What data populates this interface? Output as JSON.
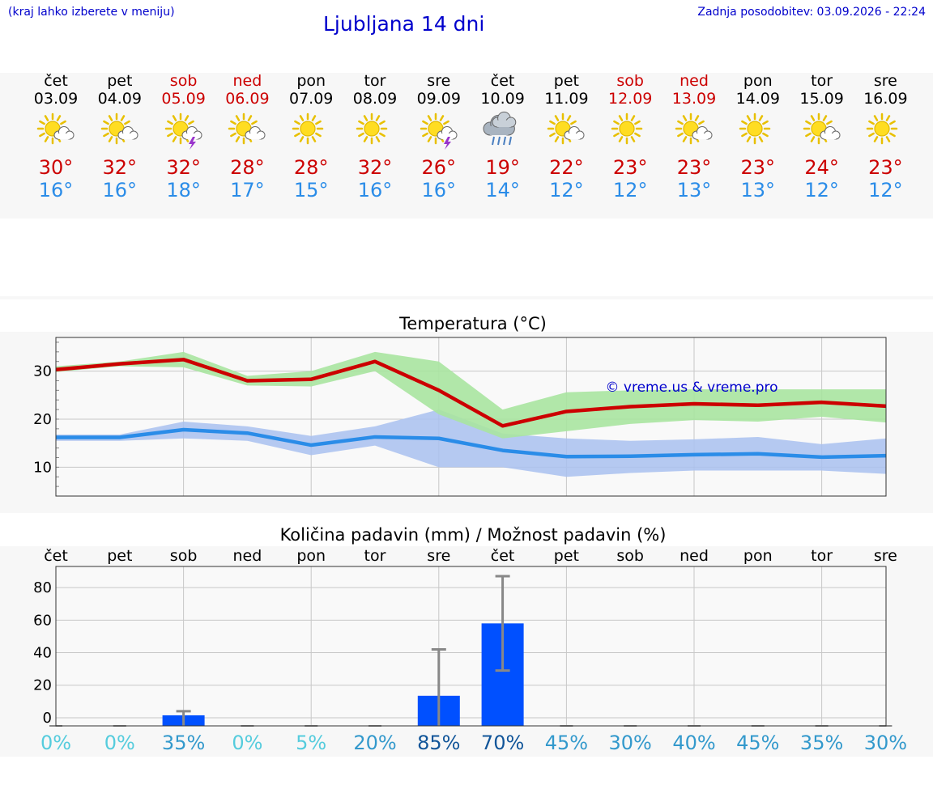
{
  "header": {
    "hint": "(kraj lahko izberete v meniju)",
    "title": "Ljubljana 14 dni",
    "updated": "Zadnja posodobitev: 03.09.2026 - 22:24"
  },
  "days": [
    {
      "dow": "čet",
      "date": "03.09",
      "weekend": false,
      "icon": "sun-cloud-icon",
      "tmax": "30°",
      "tmin": "16°"
    },
    {
      "dow": "pet",
      "date": "04.09",
      "weekend": false,
      "icon": "sun-cloud-icon",
      "tmax": "32°",
      "tmin": "16°"
    },
    {
      "dow": "sob",
      "date": "05.09",
      "weekend": true,
      "icon": "sun-thunder-icon",
      "tmax": "32°",
      "tmin": "18°"
    },
    {
      "dow": "ned",
      "date": "06.09",
      "weekend": true,
      "icon": "sun-cloud-icon",
      "tmax": "28°",
      "tmin": "17°"
    },
    {
      "dow": "pon",
      "date": "07.09",
      "weekend": false,
      "icon": "sun-icon",
      "tmax": "28°",
      "tmin": "15°"
    },
    {
      "dow": "tor",
      "date": "08.09",
      "weekend": false,
      "icon": "sun-icon",
      "tmax": "32°",
      "tmin": "16°"
    },
    {
      "dow": "sre",
      "date": "09.09",
      "weekend": false,
      "icon": "sun-thunder-icon",
      "tmax": "26°",
      "tmin": "16°"
    },
    {
      "dow": "čet",
      "date": "10.09",
      "weekend": false,
      "icon": "rain-cloud-icon",
      "tmax": "19°",
      "tmin": "14°"
    },
    {
      "dow": "pet",
      "date": "11.09",
      "weekend": false,
      "icon": "sun-cloud-icon",
      "tmax": "22°",
      "tmin": "12°"
    },
    {
      "dow": "sob",
      "date": "12.09",
      "weekend": true,
      "icon": "sun-icon",
      "tmax": "23°",
      "tmin": "12°"
    },
    {
      "dow": "ned",
      "date": "13.09",
      "weekend": true,
      "icon": "sun-cloud-icon",
      "tmax": "23°",
      "tmin": "13°"
    },
    {
      "dow": "pon",
      "date": "14.09",
      "weekend": false,
      "icon": "sun-icon",
      "tmax": "23°",
      "tmin": "13°"
    },
    {
      "dow": "tor",
      "date": "15.09",
      "weekend": false,
      "icon": "sun-cloud-icon",
      "tmax": "24°",
      "tmin": "12°"
    },
    {
      "dow": "sre",
      "date": "16.09",
      "weekend": false,
      "icon": "sun-icon",
      "tmax": "23°",
      "tmin": "12°"
    }
  ],
  "colors": {
    "max": "#cc0000",
    "min": "#2a8ce8",
    "max_band": "#a8e4a0",
    "min_band": "#a9c1f0",
    "bar": "#0050ff"
  },
  "chart_data": [
    {
      "type": "line",
      "title": "Temperatura (°C)",
      "watermark": "© vreme.us & vreme.pro",
      "yticks": [
        "10",
        "20",
        "30"
      ],
      "ylim": [
        4,
        37
      ],
      "x": [
        "03.09",
        "04.09",
        "05.09",
        "06.09",
        "07.09",
        "08.09",
        "09.09",
        "10.09",
        "11.09",
        "12.09",
        "13.09",
        "14.09",
        "15.09",
        "16.09"
      ],
      "series": [
        {
          "values": [
            30.3,
            31.5,
            32.4,
            28.0,
            28.3,
            32.0,
            26.0,
            18.6,
            21.6,
            22.6,
            23.2,
            22.9,
            23.5,
            22.7
          ],
          "band_low": [
            29.8,
            31.0,
            30.8,
            27.0,
            26.8,
            30.0,
            21.0,
            16.0,
            17.5,
            19.0,
            19.8,
            19.5,
            20.5,
            19.3
          ],
          "band_high": [
            31.0,
            32.0,
            34.0,
            29.0,
            30.0,
            34.0,
            32.0,
            22.0,
            25.6,
            26.0,
            26.2,
            26.2,
            26.2,
            26.2
          ]
        },
        {
          "values": [
            16.2,
            16.2,
            17.8,
            17.1,
            14.6,
            16.3,
            16.0,
            13.5,
            12.2,
            12.3,
            12.6,
            12.8,
            12.1,
            12.4
          ],
          "band_low": [
            15.5,
            15.5,
            16.0,
            15.5,
            12.5,
            14.5,
            10.0,
            10.0,
            8.0,
            8.8,
            9.3,
            9.3,
            9.3,
            8.6
          ],
          "band_high": [
            16.8,
            16.8,
            19.5,
            18.5,
            16.5,
            18.5,
            22.0,
            17.0,
            16.0,
            15.5,
            15.8,
            16.3,
            14.8,
            16.0
          ]
        }
      ]
    },
    {
      "type": "bar",
      "title": "Količina padavin (mm) / Možnost padavin (%)",
      "categories": [
        "čet",
        "pet",
        "sob",
        "ned",
        "pon",
        "tor",
        "sre",
        "čet",
        "pet",
        "sob",
        "ned",
        "pon",
        "tor",
        "sre"
      ],
      "yticks": [
        "0",
        "20",
        "40",
        "60",
        "80"
      ],
      "ylim": [
        -5,
        93
      ],
      "values": [
        0,
        0,
        1.5,
        0,
        0,
        0,
        13.5,
        58,
        0,
        0,
        0,
        0,
        0,
        0
      ],
      "err_low": [
        0,
        0,
        0,
        0,
        0,
        0,
        0,
        29,
        0,
        0,
        0,
        0,
        0,
        0
      ],
      "err_high": [
        0,
        0,
        4,
        0,
        0,
        0,
        42,
        87,
        0,
        0,
        0,
        0,
        0,
        0
      ],
      "probability": [
        "0%",
        "0%",
        "35%",
        "0%",
        "5%",
        "20%",
        "85%",
        "70%",
        "45%",
        "30%",
        "40%",
        "45%",
        "35%",
        "30%"
      ],
      "prob_colors": [
        "#55ccdd",
        "#55ccdd",
        "#3399cc",
        "#55ccdd",
        "#55ccdd",
        "#3399cc",
        "#115599",
        "#115599",
        "#3399cc",
        "#3399cc",
        "#3399cc",
        "#3399cc",
        "#3399cc",
        "#3399cc"
      ]
    }
  ]
}
